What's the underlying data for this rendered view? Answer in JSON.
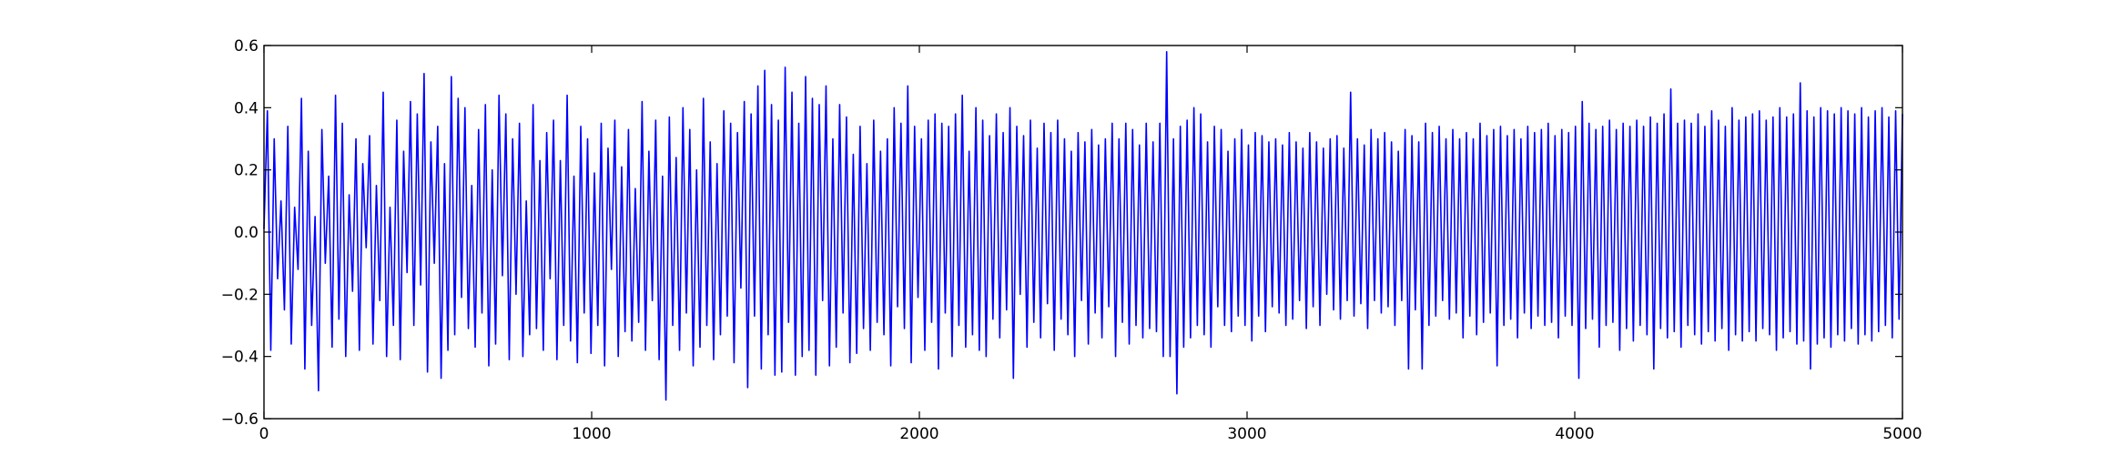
{
  "chart_data": {
    "type": "line",
    "title": "",
    "xlabel": "",
    "ylabel": "",
    "xlim": [
      0,
      5000
    ],
    "ylim": [
      -0.6,
      0.6
    ],
    "x_ticks": [
      0,
      1000,
      2000,
      3000,
      4000,
      5000
    ],
    "x_tick_labels": [
      "0",
      "1000",
      "2000",
      "3000",
      "4000",
      "5000"
    ],
    "y_ticks": [
      -0.6,
      -0.4,
      -0.2,
      0.0,
      0.2,
      0.4,
      0.6
    ],
    "y_tick_labels": [
      "−0.6",
      "−0.4",
      "−0.2",
      "0.0",
      "0.2",
      "0.4",
      "0.6"
    ],
    "grid": false,
    "legend": "none",
    "line_color": "#0000ff",
    "series": [
      {
        "x_start": 0,
        "x_step": 5,
        "values": [
          0.01,
          0.39,
          -0.38,
          0.3,
          -0.15,
          0.1,
          -0.25,
          0.34,
          -0.36,
          0.08,
          -0.12,
          0.43,
          -0.44,
          0.26,
          -0.3,
          0.05,
          -0.51,
          0.33,
          -0.1,
          0.18,
          -0.37,
          0.44,
          -0.28,
          0.35,
          -0.4,
          0.12,
          -0.19,
          0.3,
          -0.38,
          0.22,
          -0.05,
          0.31,
          -0.36,
          0.15,
          -0.22,
          0.45,
          -0.4,
          0.08,
          -0.3,
          0.36,
          -0.41,
          0.26,
          -0.13,
          0.42,
          -0.3,
          0.38,
          -0.17,
          0.51,
          -0.45,
          0.29,
          -0.1,
          0.34,
          -0.47,
          0.22,
          -0.38,
          0.5,
          -0.33,
          0.43,
          -0.21,
          0.4,
          -0.31,
          0.15,
          -0.37,
          0.33,
          -0.26,
          0.41,
          -0.43,
          0.2,
          -0.36,
          0.44,
          -0.14,
          0.38,
          -0.41,
          0.3,
          -0.2,
          0.35,
          -0.4,
          0.1,
          -0.33,
          0.41,
          -0.31,
          0.23,
          -0.38,
          0.32,
          -0.15,
          0.36,
          -0.41,
          0.23,
          -0.3,
          0.44,
          -0.35,
          0.18,
          -0.42,
          0.34,
          -0.26,
          0.3,
          -0.39,
          0.19,
          -0.3,
          0.35,
          -0.43,
          0.27,
          -0.12,
          0.36,
          -0.4,
          0.21,
          -0.32,
          0.33,
          -0.35,
          0.14,
          -0.29,
          0.42,
          -0.38,
          0.26,
          -0.22,
          0.36,
          -0.41,
          0.18,
          -0.54,
          0.37,
          -0.3,
          0.24,
          -0.38,
          0.4,
          -0.26,
          0.33,
          -0.43,
          0.2,
          -0.37,
          0.43,
          -0.3,
          0.29,
          -0.41,
          0.22,
          -0.33,
          0.39,
          -0.27,
          0.35,
          -0.42,
          0.32,
          -0.18,
          0.42,
          -0.5,
          0.38,
          -0.27,
          0.47,
          -0.44,
          0.52,
          -0.33,
          0.41,
          -0.46,
          0.36,
          -0.45,
          0.53,
          -0.29,
          0.45,
          -0.46,
          0.35,
          -0.4,
          0.5,
          -0.38,
          0.43,
          -0.46,
          0.41,
          -0.22,
          0.47,
          -0.43,
          0.3,
          -0.37,
          0.41,
          -0.26,
          0.37,
          -0.42,
          0.25,
          -0.39,
          0.34,
          -0.31,
          0.22,
          -0.38,
          0.36,
          -0.29,
          0.26,
          -0.33,
          0.3,
          -0.43,
          0.4,
          -0.24,
          0.35,
          -0.31,
          0.47,
          -0.42,
          0.34,
          -0.21,
          0.3,
          -0.38,
          0.36,
          -0.29,
          0.38,
          -0.44,
          0.35,
          -0.26,
          0.34,
          -0.4,
          0.38,
          -0.3,
          0.44,
          -0.37,
          0.26,
          -0.33,
          0.4,
          -0.38,
          0.36,
          -0.4,
          0.31,
          -0.28,
          0.38,
          -0.34,
          0.32,
          -0.25,
          0.4,
          -0.47,
          0.34,
          -0.2,
          0.31,
          -0.37,
          0.36,
          -0.29,
          0.27,
          -0.34,
          0.35,
          -0.23,
          0.32,
          -0.38,
          0.36,
          -0.28,
          0.3,
          -0.33,
          0.26,
          -0.4,
          0.32,
          -0.22,
          0.29,
          -0.36,
          0.33,
          -0.26,
          0.28,
          -0.34,
          0.3,
          -0.24,
          0.35,
          -0.4,
          0.3,
          -0.29,
          0.35,
          -0.36,
          0.33,
          -0.3,
          0.28,
          -0.34,
          0.35,
          -0.31,
          0.29,
          -0.32,
          0.35,
          -0.4,
          0.58,
          -0.4,
          0.3,
          -0.52,
          0.34,
          -0.37,
          0.36,
          -0.34,
          0.4,
          -0.3,
          0.38,
          -0.33,
          0.29,
          -0.37,
          0.34,
          -0.24,
          0.33,
          -0.3,
          0.26,
          -0.32,
          0.3,
          -0.27,
          0.33,
          -0.3,
          0.28,
          -0.35,
          0.32,
          -0.27,
          0.31,
          -0.32,
          0.29,
          -0.24,
          0.3,
          -0.26,
          0.28,
          -0.3,
          0.32,
          -0.28,
          0.29,
          -0.22,
          0.27,
          -0.31,
          0.32,
          -0.24,
          0.29,
          -0.3,
          0.27,
          -0.2,
          0.3,
          -0.25,
          0.31,
          -0.28,
          0.27,
          -0.22,
          0.45,
          -0.27,
          0.3,
          -0.23,
          0.28,
          -0.31,
          0.33,
          -0.22,
          0.3,
          -0.26,
          0.32,
          -0.24,
          0.29,
          -0.3,
          0.26,
          -0.22,
          0.33,
          -0.44,
          0.31,
          -0.25,
          0.29,
          -0.44,
          0.35,
          -0.3,
          0.32,
          -0.27,
          0.34,
          -0.22,
          0.3,
          -0.28,
          0.33,
          -0.26,
          0.3,
          -0.34,
          0.32,
          -0.27,
          0.3,
          -0.33,
          0.35,
          -0.29,
          0.31,
          -0.26,
          0.33,
          -0.43,
          0.34,
          -0.3,
          0.31,
          -0.28,
          0.33,
          -0.34,
          0.3,
          -0.26,
          0.34,
          -0.31,
          0.32,
          -0.27,
          0.33,
          -0.3,
          0.35,
          -0.29,
          0.31,
          -0.34,
          0.33,
          -0.27,
          0.32,
          -0.3,
          0.34,
          -0.47,
          0.42,
          -0.31,
          0.35,
          -0.28,
          0.33,
          -0.37,
          0.34,
          -0.3,
          0.36,
          -0.29,
          0.33,
          -0.38,
          0.35,
          -0.31,
          0.34,
          -0.35,
          0.36,
          -0.3,
          0.34,
          -0.33,
          0.37,
          -0.44,
          0.35,
          -0.31,
          0.38,
          -0.34,
          0.46,
          -0.32,
          0.35,
          -0.37,
          0.36,
          -0.3,
          0.35,
          -0.33,
          0.38,
          -0.36,
          0.34,
          -0.32,
          0.39,
          -0.35,
          0.36,
          -0.31,
          0.34,
          -0.38,
          0.4,
          -0.33,
          0.36,
          -0.35,
          0.37,
          -0.32,
          0.38,
          -0.35,
          0.39,
          -0.31,
          0.36,
          -0.33,
          0.37,
          -0.38,
          0.4,
          -0.34,
          0.37,
          -0.32,
          0.38,
          -0.36,
          0.48,
          -0.35,
          0.39,
          -0.44,
          0.37,
          -0.36,
          0.4,
          -0.34,
          0.39,
          -0.37,
          0.38,
          -0.33,
          0.4,
          -0.35,
          0.39,
          -0.31,
          0.38,
          -0.36,
          0.4,
          -0.33,
          0.37,
          -0.35,
          0.39,
          -0.32,
          0.4,
          -0.3,
          0.37,
          -0.34,
          0.39,
          -0.28,
          0.38
        ]
      }
    ]
  }
}
